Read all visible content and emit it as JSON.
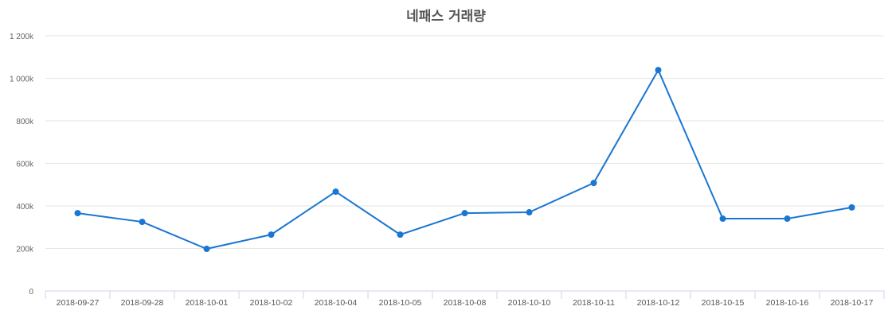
{
  "chart_data": {
    "type": "line",
    "title": "네패스 거래량",
    "xlabel": "",
    "ylabel": "",
    "categories": [
      "2018-09-27",
      "2018-09-28",
      "2018-10-01",
      "2018-10-02",
      "2018-10-04",
      "2018-10-05",
      "2018-10-08",
      "2018-10-10",
      "2018-10-11",
      "2018-10-12",
      "2018-10-15",
      "2018-10-16",
      "2018-10-17"
    ],
    "series": [
      {
        "name": "거래량",
        "color": "#1976d2",
        "values": [
          366000,
          325000,
          198000,
          265000,
          467000,
          265000,
          366000,
          370000,
          508000,
          1039000,
          340000,
          340000,
          393000
        ]
      }
    ],
    "ylim": [
      0,
      1200000
    ],
    "yticks": [
      0,
      200000,
      400000,
      600000,
      800000,
      1000000,
      1200000
    ],
    "ytick_labels": [
      "0",
      "200k",
      "400k",
      "600k",
      "800k",
      "1 000k",
      "1 200k"
    ],
    "grid": true,
    "legend": "none"
  },
  "colors": {
    "line": "#1976d2",
    "grid": "#e6e6e6",
    "axis": "#ccd6eb",
    "title": "#555555"
  }
}
